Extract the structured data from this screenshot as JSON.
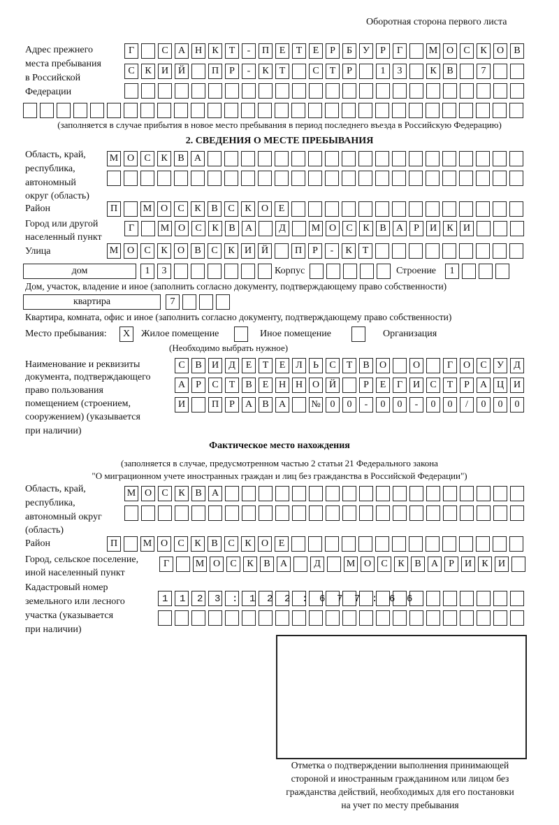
{
  "header": {
    "side_label": "Оборотная сторона первого листа"
  },
  "prev_address": {
    "label": [
      "Адрес прежнего",
      "места пребывания",
      "в Российской",
      "Федерации"
    ],
    "rows": [
      "Г САНКТ-ПЕТЕРБУРГ МОСКОВ",
      "СКИЙ ПР-КТ СТР 13 КВ 7  ",
      "",
      ""
    ],
    "note": "(заполняется в случае прибытия в новое место пребывания в период последнего въезда в Российскую Федерацию)"
  },
  "section2": {
    "title": "2. СВЕДЕНИЯ О МЕСТЕ ПРЕБЫВАНИЯ",
    "region_label": [
      "Область, край,",
      "республика,",
      "автономный",
      "округ (область)"
    ],
    "region_rows": [
      "МОСКВА",
      ""
    ],
    "district_label": "Район",
    "district_row": "П МОСКВСКОЕ",
    "city_label": [
      "Город или другой",
      "населенный пункт"
    ],
    "city_row": "Г МОСКВА Д МОСКВАРИКИ",
    "street_label": "Улица",
    "street_row": "МОСКОВСКИЙ ПР-КТ",
    "house_type": "дом",
    "house_row": "13",
    "korpus_label": "Корпус",
    "korpus_row": "",
    "building_label": "Строение",
    "building_row": "1",
    "house_note": "Дом, участок, владение и иное (заполнить согласно документу, подтверждающему право собственности)",
    "flat_type": "квартира",
    "flat_row": "7",
    "flat_note": "Квартира, комната, офис и иное (заполнить согласно документу, подтверждающему право собственности)",
    "stay_label": "Место пребывания:",
    "options": [
      {
        "label": "Жилое помещение",
        "mark": "Х",
        "checked": true
      },
      {
        "label": "Иное помещение",
        "mark": "",
        "checked": false
      },
      {
        "label": "Организация",
        "mark": "",
        "checked": false
      }
    ],
    "choose_note": "(Необходимо выбрать нужное)",
    "doc_label": [
      "Наименование и реквизиты",
      "документа, подтверждающего",
      "право пользования",
      "помещением (строением,",
      "сооружением) (указывается",
      "при наличии)"
    ],
    "doc_rows": [
      "СВИДЕТЕЛЬСТВО О ГОСУД",
      "АРСТВЕННОЙ РЕГИСТРАЦИ",
      "И ПРАВА №00-00-00/000"
    ]
  },
  "actual": {
    "title": "Фактическое место нахождения",
    "note1": "(заполняется в случае, предусмотренном частью 2 статьи 21 Федерального закона",
    "note2": "\"О миграционном учете иностранных граждан и лиц без гражданства в Российской Федерации\")",
    "region_label": [
      "Область, край,",
      "республика,",
      "автономный округ",
      "(область)"
    ],
    "region_rows": [
      "МОСКВА",
      ""
    ],
    "district_label": "Район",
    "district_row": "П МОСКВСКОЕ",
    "city_label": [
      "Город, сельское поселение,",
      "иной населенный пункт"
    ],
    "city_row": "Г МОСКВА Д МОСКВАРИКИ",
    "cadastre_label": [
      "Кадастровый номер",
      "земельного или лесного",
      "участка (указывается",
      "при наличии)"
    ],
    "cadastre_rows": [
      "1123:122:677:66",
      ""
    ]
  },
  "confirmation": {
    "caption": [
      "Отметка о подтверждении выполнения принимающей",
      "стороной и иностранным гражданином или лицом без",
      "гражданства действий, необходимых для его постановки",
      "на учет по месту пребывания"
    ]
  }
}
